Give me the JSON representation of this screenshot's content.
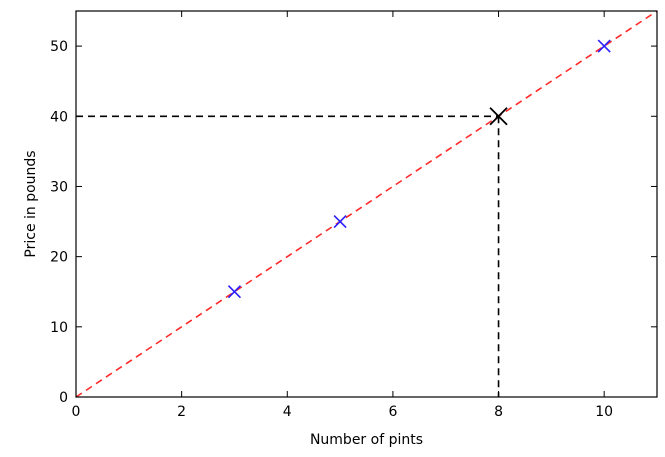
{
  "chart_data": {
    "type": "scatter",
    "title": "",
    "xlabel": "Number of pints",
    "ylabel": "Price in pounds",
    "xlim": [
      0,
      11
    ],
    "ylim": [
      0,
      55
    ],
    "x_ticks": [
      0,
      2,
      4,
      6,
      8,
      10
    ],
    "y_ticks": [
      0,
      10,
      20,
      30,
      40,
      50
    ],
    "grid": false,
    "series": [
      {
        "type": "scatter",
        "marker": "x",
        "color": "#2a1fff",
        "points": [
          {
            "x": 3,
            "y": 15
          },
          {
            "x": 5,
            "y": 25
          },
          {
            "x": 10,
            "y": 50
          }
        ]
      },
      {
        "type": "line",
        "style": "dashed",
        "color": "#ff2a2a",
        "points": [
          {
            "x": 0,
            "y": 0
          },
          {
            "x": 11,
            "y": 55
          }
        ]
      }
    ],
    "highlight": {
      "marker": "x",
      "color": "#000000",
      "x": 8,
      "y": 40,
      "guide_lines": "dashed",
      "guide_color": "#000000"
    }
  }
}
